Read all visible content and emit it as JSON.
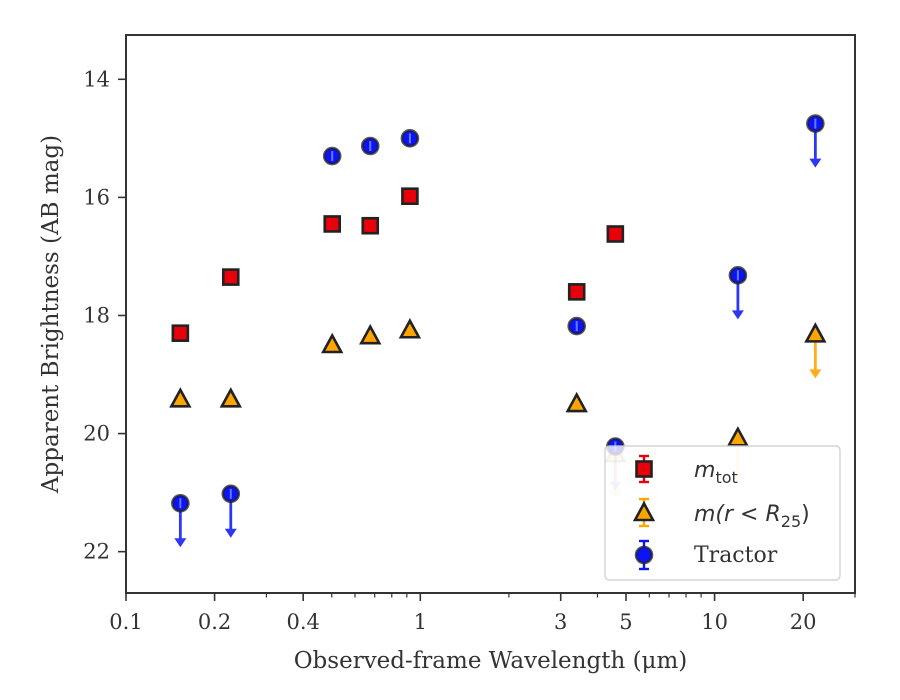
{
  "chart_data": {
    "type": "scatter",
    "xlabel": "Observed-frame Wavelength (μm)",
    "ylabel": "Apparent Brightness (AB mag)",
    "xscale": "log",
    "xlim": [
      0.1,
      30
    ],
    "ylim": [
      22.7,
      13.25
    ],
    "y_inverted": true,
    "xticks": [
      {
        "value": 0.1,
        "label": "0.1"
      },
      {
        "value": 0.2,
        "label": "0.2"
      },
      {
        "value": 0.4,
        "label": "0.4"
      },
      {
        "value": 1,
        "label": "1"
      },
      {
        "value": 3,
        "label": "3"
      },
      {
        "value": 5,
        "label": "5"
      },
      {
        "value": 10,
        "label": "10"
      },
      {
        "value": 20,
        "label": "20"
      }
    ],
    "yticks": [
      {
        "value": 14,
        "label": "14"
      },
      {
        "value": 16,
        "label": "16"
      },
      {
        "value": 18,
        "label": "18"
      },
      {
        "value": 20,
        "label": "20"
      },
      {
        "value": 22,
        "label": "22"
      }
    ],
    "grid": false,
    "legend_position": "lower-right",
    "series": [
      {
        "name": "m_tot",
        "marker": "square",
        "color": "#e8000b",
        "points": [
          {
            "x": 0.153,
            "y": 18.3,
            "limit": false
          },
          {
            "x": 0.227,
            "y": 17.35,
            "limit": false
          },
          {
            "x": 0.502,
            "y": 16.45,
            "limit": false
          },
          {
            "x": 0.676,
            "y": 16.48,
            "limit": false
          },
          {
            "x": 0.922,
            "y": 15.98,
            "limit": false
          },
          {
            "x": 3.4,
            "y": 17.6,
            "limit": false
          },
          {
            "x": 4.6,
            "y": 16.62,
            "limit": false
          }
        ]
      },
      {
        "name": "m(r<R25)",
        "marker": "triangle",
        "color": "#ffa500",
        "points": [
          {
            "x": 0.153,
            "y": 19.42,
            "limit": false
          },
          {
            "x": 0.227,
            "y": 19.42,
            "limit": false
          },
          {
            "x": 0.502,
            "y": 18.5,
            "limit": false
          },
          {
            "x": 0.676,
            "y": 18.35,
            "limit": false
          },
          {
            "x": 0.922,
            "y": 18.25,
            "limit": false
          },
          {
            "x": 3.4,
            "y": 19.5,
            "limit": false
          },
          {
            "x": 4.6,
            "y": 20.35,
            "limit": true
          },
          {
            "x": 12.0,
            "y": 20.08,
            "limit": true
          },
          {
            "x": 22.0,
            "y": 18.32,
            "limit": true
          }
        ]
      },
      {
        "name": "Tractor",
        "marker": "circle",
        "color": "#0a14f5",
        "points": [
          {
            "x": 0.153,
            "y": 21.18,
            "limit": true
          },
          {
            "x": 0.227,
            "y": 21.02,
            "limit": true
          },
          {
            "x": 0.502,
            "y": 15.3,
            "limit": false
          },
          {
            "x": 0.676,
            "y": 15.13,
            "limit": false
          },
          {
            "x": 0.922,
            "y": 15.0,
            "limit": false
          },
          {
            "x": 3.4,
            "y": 18.18,
            "limit": false
          },
          {
            "x": 4.6,
            "y": 20.22,
            "limit": true
          },
          {
            "x": 12.0,
            "y": 17.32,
            "limit": true
          },
          {
            "x": 22.0,
            "y": 14.75,
            "limit": true
          }
        ]
      }
    ]
  },
  "legend": {
    "mtot_base": "m",
    "mtot_sub": "tot",
    "mr_base": "m(r < R",
    "mr_sub": "25",
    "mr_close": ")",
    "tractor": "Tractor"
  },
  "colors": {
    "square": "#e8000b",
    "triangle": "#ffa500",
    "circle": "#0a14f5",
    "edge": "#222222",
    "axis": "#333333"
  }
}
